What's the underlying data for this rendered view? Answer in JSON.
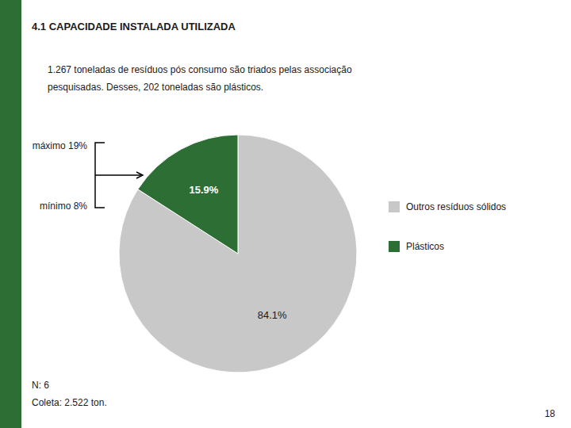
{
  "chart_data": {
    "type": "pie",
    "title": "4.1 CAPACIDADE INSTALADA UTILIZADA",
    "subtitle": [
      "1.267 toneladas de resíduos pós consumo são triados pelas associação",
      "pesquisadas. Desses, 202 toneladas são plásticos."
    ],
    "categories": [
      "Outros resíduos sólidos",
      "Plásticos"
    ],
    "values": [
      84.1,
      15.9
    ],
    "value_labels": [
      "84.1%",
      "15.9%"
    ],
    "colors": [
      "#c8c8c8",
      "#2d6e35"
    ],
    "data_labels": true,
    "legend": "right",
    "annotations": [
      "máximo 19%",
      "mínimo 8%",
      "N: 6",
      "Coleta: 2.522 ton.",
      "18"
    ]
  }
}
